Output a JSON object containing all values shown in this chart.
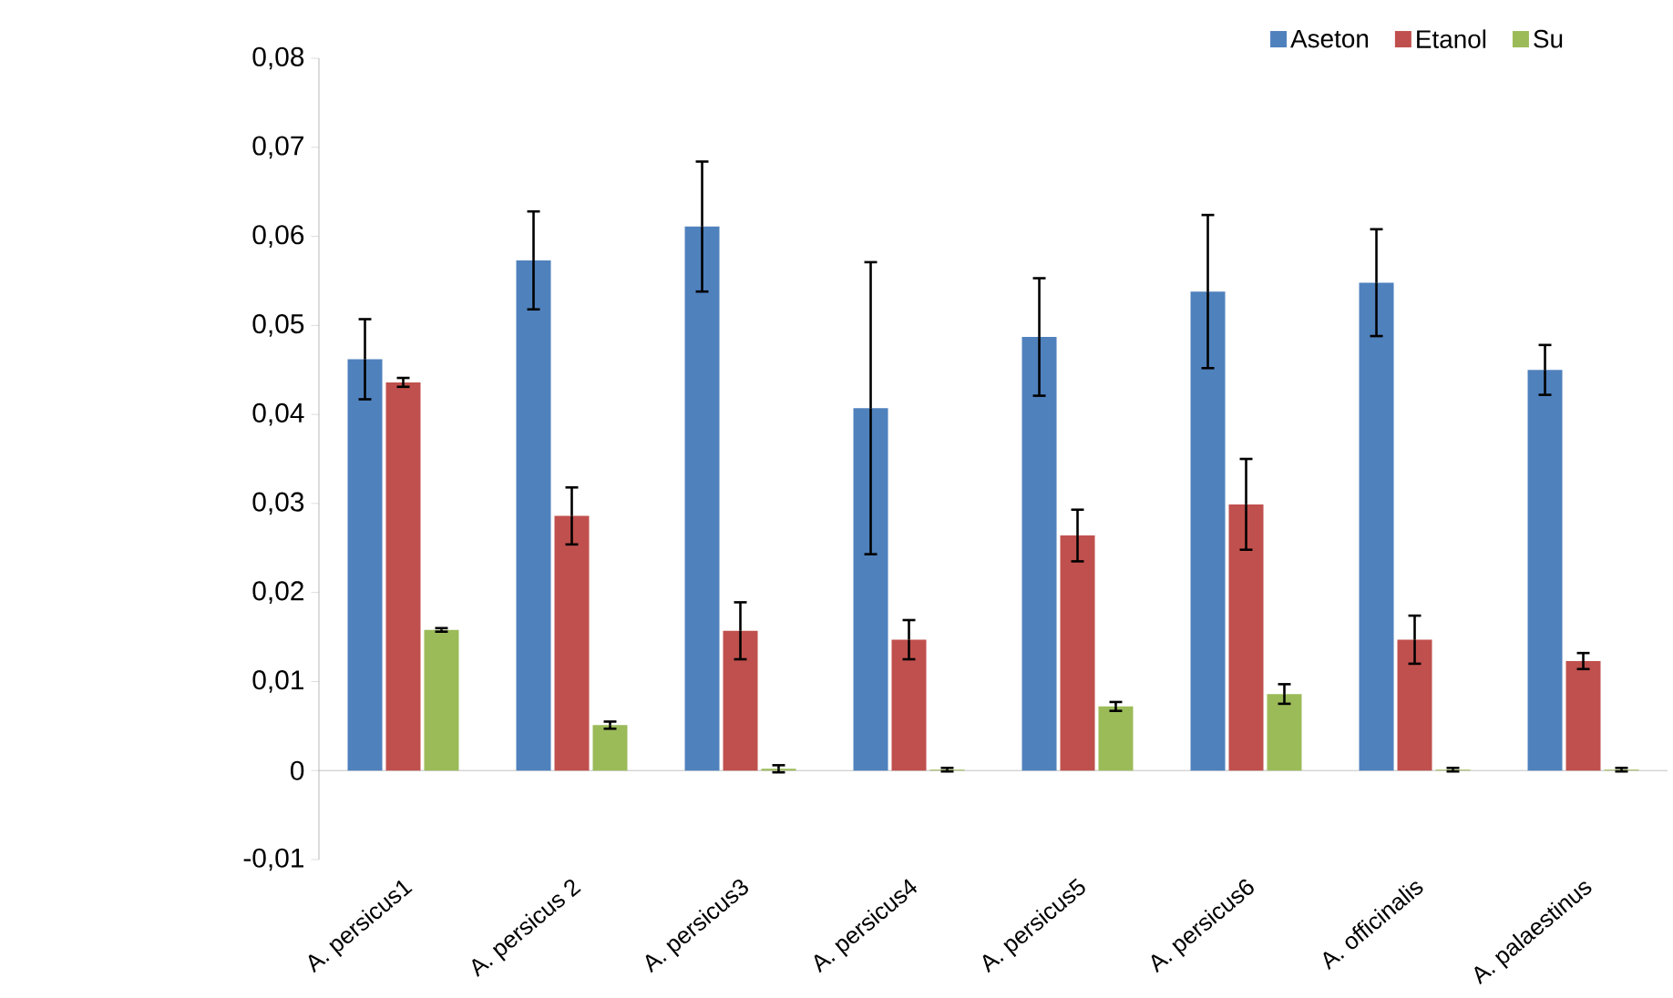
{
  "chart_data": {
    "type": "bar",
    "categories": [
      "A. persicus1",
      "A. persicus 2",
      "A. persicus3",
      "A. persicus4",
      "A. persicus5",
      "A. persicus6",
      "A. officinalis",
      "A. palaestinus"
    ],
    "series": [
      {
        "name": "Aseton",
        "color": "#4f81bd",
        "values": [
          0.0462,
          0.0573,
          0.0611,
          0.0407,
          0.0487,
          0.0538,
          0.0548,
          0.045
        ],
        "errors": [
          0.0045,
          0.0055,
          0.0073,
          0.0164,
          0.0066,
          0.0086,
          0.006,
          0.0028
        ]
      },
      {
        "name": "Etanol",
        "color": "#c0504d",
        "values": [
          0.0436,
          0.0286,
          0.0157,
          0.0147,
          0.0264,
          0.0299,
          0.0147,
          0.0123
        ],
        "errors": [
          0.0005,
          0.0032,
          0.0032,
          0.0022,
          0.0029,
          0.0051,
          0.0027,
          0.0009
        ]
      },
      {
        "name": "Su",
        "color": "#9bbb59",
        "values": [
          0.0158,
          0.0051,
          0.0002,
          0.0001,
          0.0072,
          0.0086,
          0.0001,
          0.0001
        ],
        "errors": [
          0.0002,
          0.0004,
          0.0004,
          0.0002,
          0.0005,
          0.0011,
          0.0002,
          0.0002
        ]
      }
    ],
    "ylim": [
      -0.01,
      0.08
    ],
    "yticks": [
      {
        "value": -0.01,
        "label": "-0,01"
      },
      {
        "value": 0,
        "label": "0"
      },
      {
        "value": 0.01,
        "label": "0,01"
      },
      {
        "value": 0.02,
        "label": "0,02"
      },
      {
        "value": 0.03,
        "label": "0,03"
      },
      {
        "value": 0.04,
        "label": "0,04"
      },
      {
        "value": 0.05,
        "label": "0,05"
      },
      {
        "value": 0.06,
        "label": "0,06"
      },
      {
        "value": 0.07,
        "label": "0,07"
      },
      {
        "value": 0.08,
        "label": "0,08"
      }
    ],
    "ref_lines": [
      {
        "axis": "y",
        "value": 0,
        "color": "#b3b3b3"
      }
    ],
    "legend": "top right",
    "grid": false
  }
}
